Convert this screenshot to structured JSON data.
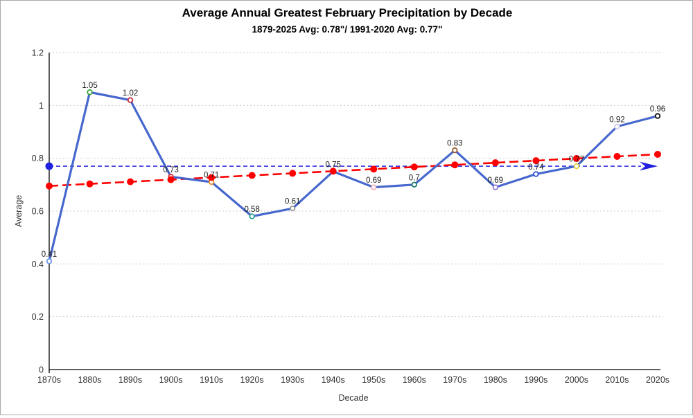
{
  "chart_data": {
    "type": "line",
    "title": "Average Annual Greatest February Precipitation by Decade",
    "subtitle": "1879-2025 Avg: 0.78\"/ 1991-2020 Avg: 0.77\"",
    "xlabel": "Decade",
    "ylabel": "Average",
    "ylim": [
      0,
      1.2
    ],
    "ytick_step": 0.2,
    "ytick_labels": [
      "0",
      "0.2",
      "0.4",
      "0.6",
      "0.8",
      "1",
      "1.2"
    ],
    "categories": [
      "1870s",
      "1880s",
      "1890s",
      "1900s",
      "1910s",
      "1920s",
      "1930s",
      "1940s",
      "1950s",
      "1960s",
      "1970s",
      "1980s",
      "1990s",
      "2000s",
      "2010s",
      "2020s"
    ],
    "grid": true,
    "legend": "none",
    "series": [
      {
        "name": "decade-average",
        "kind": "main",
        "line_color": "#4667cd",
        "values": [
          0.41,
          1.05,
          1.02,
          0.73,
          0.71,
          0.58,
          0.61,
          0.75,
          0.69,
          0.7,
          0.83,
          0.69,
          0.74,
          0.77,
          0.92,
          0.96
        ],
        "point_labels": [
          "0.41",
          "1.05",
          "1.02",
          "0.73",
          "0.71",
          "0.58",
          "0.61",
          "0.75",
          "0.69",
          "0.7",
          "0.83",
          "0.69",
          "0.74",
          "0.77",
          "0.92",
          "0.96"
        ],
        "marker_colors": [
          "#6f95e8",
          "#3da43d",
          "#c42a3c",
          "#e03030",
          "#e0902a",
          "#2a9d8f",
          "#9a9a9a",
          "#4060c0",
          "#efb0c0",
          "#1f7a68",
          "#9a5b2d",
          "#8d7ad6",
          "#2f4fd0",
          "#e6d23e",
          "#cfcfe8",
          "#111111"
        ]
      },
      {
        "name": "linear-trend",
        "kind": "trend",
        "color": "#ff0000",
        "start": 0.695,
        "end": 0.815
      },
      {
        "name": "normal-1991-2020",
        "kind": "reference",
        "color": "#2020e0",
        "value": 0.77
      }
    ]
  }
}
